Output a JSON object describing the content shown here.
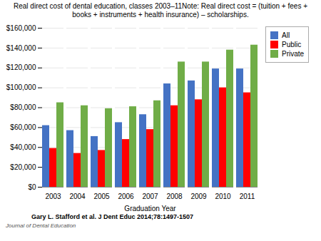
{
  "chart_data": {
    "type": "bar",
    "title": "Real direct cost of dental education, classes 2003–11Note: Real direct cost = (tuition + fees +\nbooks + instruments + health insurance) – scholarships.",
    "xlabel": "Graduation Year",
    "categories": [
      "2003",
      "2004",
      "2005",
      "2006",
      "2007",
      "2008",
      "2009",
      "2010",
      "2011"
    ],
    "series": [
      {
        "name": "All",
        "color": "#4472C4",
        "values": [
          62000,
          57000,
          51000,
          65000,
          73000,
          104000,
          107000,
          119000,
          119000
        ]
      },
      {
        "name": "Public",
        "color": "#FF0000",
        "values": [
          39000,
          34000,
          37000,
          48000,
          58000,
          82000,
          88000,
          100000,
          95000
        ]
      },
      {
        "name": "Private",
        "color": "#70AD47",
        "values": [
          85000,
          82000,
          79000,
          81000,
          87000,
          126000,
          126000,
          138000,
          143000
        ]
      }
    ],
    "ylim": [
      0,
      160000
    ],
    "yticks": [
      {
        "value": 0,
        "label": "$0"
      },
      {
        "value": 20000,
        "label": "$20,000"
      },
      {
        "value": 40000,
        "label": "$40,000"
      },
      {
        "value": 60000,
        "label": "$60,000"
      },
      {
        "value": 80000,
        "label": "$80,000"
      },
      {
        "value": 100000,
        "label": "$100,000"
      },
      {
        "value": 120000,
        "label": "$120,000"
      },
      {
        "value": 140000,
        "label": "$140,000"
      },
      {
        "value": 160000,
        "label": "$160,000"
      }
    ],
    "grid": true,
    "legend": "right",
    "annotations": [
      "Gary L. Stafford et al. J Dent Educ 2014;78:1497-1507",
      "Journal of Dental Education"
    ]
  }
}
